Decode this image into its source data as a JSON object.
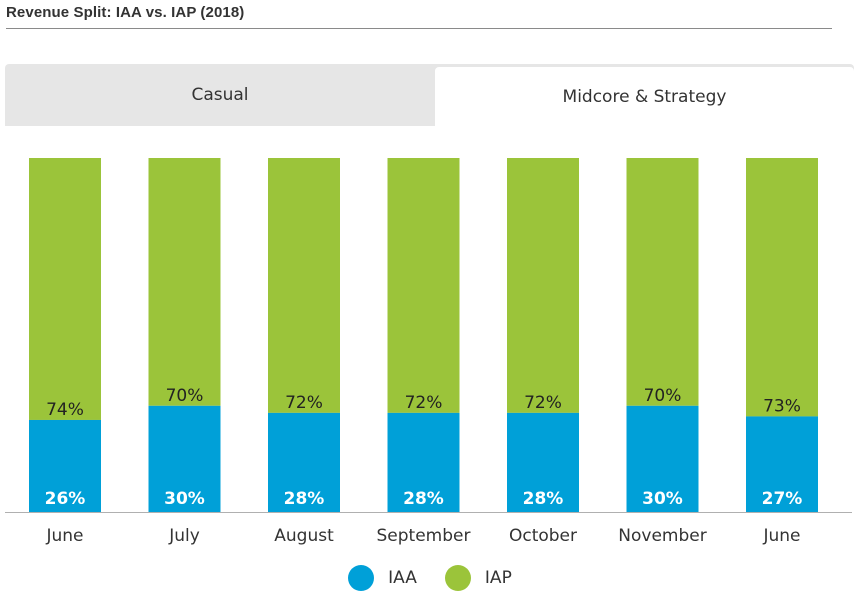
{
  "title": "Revenue Split: IAA vs. IAP (2018)",
  "tabs": [
    {
      "label": "Casual",
      "active": false
    },
    {
      "label": "Midcore & Strategy",
      "active": true
    }
  ],
  "colors": {
    "iaa": "#00a0d8",
    "iap": "#9bc43a",
    "tab_bg": "#e6e6e6",
    "axis": "#b0b0b0"
  },
  "chart_data": {
    "type": "bar",
    "stacked": true,
    "categories": [
      "June",
      "July",
      "August",
      "September",
      "October",
      "November",
      "June"
    ],
    "series": [
      {
        "name": "IAA",
        "values": [
          26,
          30,
          28,
          28,
          28,
          30,
          27
        ]
      },
      {
        "name": "IAP",
        "values": [
          74,
          70,
          72,
          72,
          72,
          70,
          73
        ]
      }
    ],
    "value_labels": {
      "IAA": [
        "26%",
        "30%",
        "28%",
        "28%",
        "28%",
        "30%",
        "27%"
      ],
      "IAP": [
        "74%",
        "70%",
        "72%",
        "72%",
        "72%",
        "70%",
        "73%"
      ]
    },
    "unit": "%",
    "ylim": [
      0,
      100
    ],
    "grid": false,
    "legend": "bottom-center",
    "xlabel": "",
    "ylabel": ""
  },
  "legend": [
    {
      "label": "IAA",
      "color": "#00a0d8"
    },
    {
      "label": "IAP",
      "color": "#9bc43a"
    }
  ]
}
